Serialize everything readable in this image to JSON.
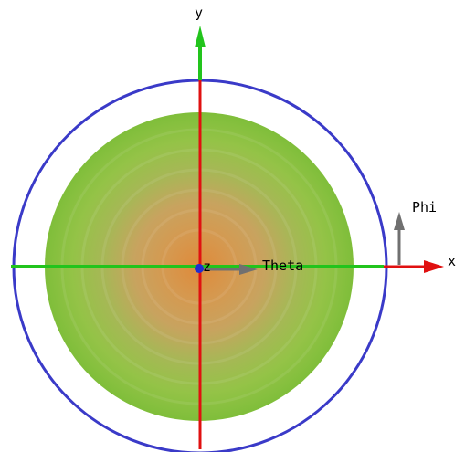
{
  "axes": {
    "x_label": "x",
    "y_label": "y",
    "z_label": "z"
  },
  "annotations": {
    "theta_label": "Theta",
    "phi_label": "Phi"
  },
  "colors": {
    "background": "#ffffff",
    "x_axis": "#e01010",
    "y_axis": "#e01010",
    "z_axis": "#1f2fd0",
    "ring": "#3a3ac8",
    "green_axis": "#22c41c",
    "theta_arrow": "#707070",
    "phi_arrow": "#707070",
    "sphere_edge": "#86c23f",
    "sphere_mid": "#a6bb57",
    "sphere_center": "#d9923e"
  }
}
